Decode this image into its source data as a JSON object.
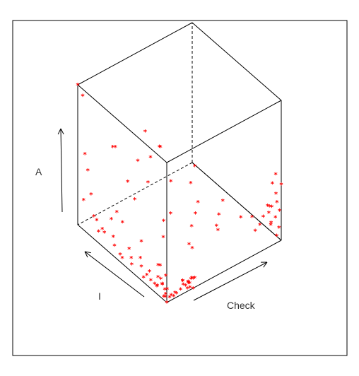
{
  "chart_data": {
    "type": "scatter3d",
    "title": "",
    "axes": {
      "x": "Check",
      "y": "I",
      "z": "A"
    },
    "marker": {
      "symbol": "*",
      "color": "#ff0000"
    },
    "box": {
      "show": true,
      "hidden_edges": "dashed"
    },
    "grid": false,
    "legend": "none",
    "points": [
      [
        0.0,
        1.0,
        1.0
      ],
      [
        0.02,
        0.97,
        0.93
      ],
      [
        0.0,
        0.92,
        0.55
      ],
      [
        0.01,
        0.9,
        0.44
      ],
      [
        0.02,
        0.96,
        0.19
      ],
      [
        0.0,
        0.85,
        0.3
      ],
      [
        0.0,
        0.82,
        0.16
      ],
      [
        0.01,
        0.8,
        0.14
      ],
      [
        0.01,
        0.78,
        0.07
      ],
      [
        0.02,
        0.75,
        0.1
      ],
      [
        0.0,
        0.7,
        0.11
      ],
      [
        0.03,
        0.64,
        0.1
      ],
      [
        0.01,
        0.6,
        0.07
      ],
      [
        0.02,
        0.55,
        0.03
      ],
      [
        0.0,
        0.5,
        0.04
      ],
      [
        0.04,
        0.45,
        0.05
      ],
      [
        0.02,
        0.42,
        0.03
      ],
      [
        0.06,
        0.5,
        0.08
      ],
      [
        0.08,
        0.4,
        0.06
      ],
      [
        0.05,
        0.35,
        0.04
      ],
      [
        0.03,
        0.3,
        0.0
      ],
      [
        0.02,
        0.25,
        0.05
      ],
      [
        0.05,
        0.2,
        0.0
      ],
      [
        0.03,
        0.15,
        0.02
      ],
      [
        0.06,
        0.1,
        0.01
      ],
      [
        0.02,
        0.06,
        0.0
      ],
      [
        0.01,
        0.03,
        0.02
      ],
      [
        0.0,
        0.0,
        0.0
      ],
      [
        0.04,
        0.02,
        0.01
      ],
      [
        0.02,
        0.04,
        0.03
      ],
      [
        0.01,
        0.12,
        0.05
      ],
      [
        0.03,
        0.09,
        0.07
      ],
      [
        0.05,
        0.06,
        0.04
      ],
      [
        0.0,
        0.18,
        0.06
      ],
      [
        0.02,
        0.22,
        0.09
      ],
      [
        0.01,
        0.08,
        0.12
      ],
      [
        0.03,
        0.05,
        0.15
      ],
      [
        0.02,
        0.1,
        0.2
      ],
      [
        0.04,
        0.15,
        0.08
      ],
      [
        0.0,
        0.05,
        0.1
      ],
      [
        0.06,
        0.0,
        0.02
      ],
      [
        0.08,
        0.01,
        0.03
      ],
      [
        0.1,
        0.02,
        0.01
      ],
      [
        0.12,
        0.0,
        0.04
      ],
      [
        0.07,
        0.04,
        0.0
      ],
      [
        0.03,
        0.6,
        0.3
      ],
      [
        0.04,
        0.55,
        0.25
      ],
      [
        0.06,
        0.7,
        0.18
      ],
      [
        0.05,
        0.35,
        0.22
      ],
      [
        0.08,
        0.2,
        0.12
      ],
      [
        0.18,
        0.02,
        0.03
      ],
      [
        0.2,
        0.0,
        0.05
      ],
      [
        0.22,
        0.04,
        0.02
      ],
      [
        0.24,
        0.01,
        0.06
      ],
      [
        0.19,
        0.06,
        0.01
      ],
      [
        0.21,
        0.03,
        0.04
      ],
      [
        0.23,
        0.0,
        0.0
      ],
      [
        0.25,
        0.05,
        0.03
      ],
      [
        0.2,
        0.08,
        0.02
      ],
      [
        0.17,
        0.04,
        0.06
      ],
      [
        0.22,
        0.0,
        0.08
      ],
      [
        0.26,
        0.02,
        0.05
      ],
      [
        0.18,
        0.0,
        0.02
      ],
      [
        0.24,
        0.07,
        0.0
      ],
      [
        0.21,
        0.01,
        0.01
      ],
      [
        0.3,
        0.1,
        0.2
      ],
      [
        0.35,
        0.2,
        0.15
      ],
      [
        0.28,
        0.4,
        0.12
      ],
      [
        0.4,
        0.55,
        0.1
      ],
      [
        0.45,
        0.3,
        0.18
      ],
      [
        0.5,
        0.6,
        0.08
      ],
      [
        0.55,
        0.15,
        0.22
      ],
      [
        0.38,
        0.7,
        0.3
      ],
      [
        0.32,
        0.85,
        0.25
      ],
      [
        0.6,
        0.45,
        0.12
      ],
      [
        0.65,
        0.25,
        0.2
      ],
      [
        0.42,
        0.9,
        0.05
      ],
      [
        0.48,
        0.8,
        0.38
      ],
      [
        0.58,
        0.7,
        0.22
      ],
      [
        0.7,
        0.55,
        0.1
      ],
      [
        0.55,
        0.95,
        0.45
      ],
      [
        0.62,
        0.88,
        0.35
      ],
      [
        0.75,
        0.65,
        0.28
      ],
      [
        0.8,
        0.4,
        0.15
      ],
      [
        0.68,
        0.3,
        0.05
      ],
      [
        0.25,
        0.9,
        0.5
      ],
      [
        0.33,
        0.75,
        0.45
      ],
      [
        0.15,
        0.8,
        0.6
      ],
      [
        0.45,
        0.65,
        0.55
      ],
      [
        0.52,
        0.4,
        0.4
      ],
      [
        0.92,
        0.1,
        0.15
      ],
      [
        0.95,
        0.05,
        0.12
      ],
      [
        0.98,
        0.0,
        0.1
      ],
      [
        1.0,
        0.02,
        0.2
      ],
      [
        0.97,
        0.08,
        0.08
      ],
      [
        0.99,
        0.12,
        0.18
      ],
      [
        0.94,
        0.03,
        0.25
      ],
      [
        1.0,
        0.06,
        0.3
      ],
      [
        0.96,
        0.0,
        0.05
      ],
      [
        0.93,
        0.15,
        0.06
      ],
      [
        1.0,
        0.1,
        0.35
      ],
      [
        0.98,
        0.04,
        0.15
      ],
      [
        0.95,
        0.09,
        0.22
      ],
      [
        0.97,
        0.01,
        0.28
      ],
      [
        1.0,
        0.0,
        0.4
      ],
      [
        0.9,
        0.2,
        0.1
      ],
      [
        0.88,
        0.3,
        0.05
      ],
      [
        0.85,
        0.1,
        0.08
      ],
      [
        0.99,
        0.05,
        0.45
      ],
      [
        1.0,
        0.14,
        0.12
      ]
    ]
  }
}
